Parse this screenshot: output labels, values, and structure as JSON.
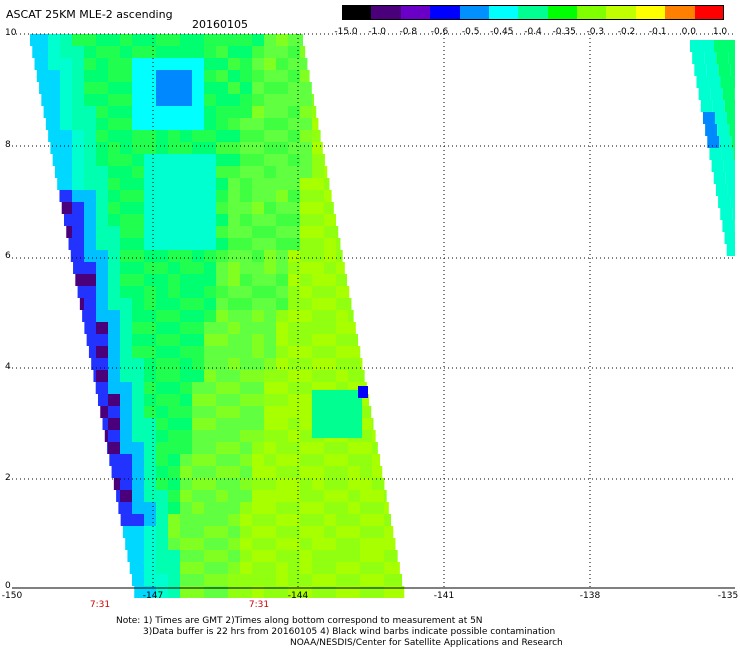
{
  "header": {
    "title": "ASCAT 25KM MLE-2 ascending",
    "date": "20160105"
  },
  "colorbar": {
    "labels": [
      "-15.0",
      "-1.0",
      "-0.8",
      "-0.6",
      "-0.5",
      "-0.45",
      "-0.4",
      "-0.35",
      "-0.3",
      "-0.2",
      "-0.1",
      "0.0",
      "1.0"
    ],
    "colors": [
      "#000000",
      "#4a007a",
      "#6a00c8",
      "#0000ff",
      "#0090ff",
      "#00ffff",
      "#00ff90",
      "#00ff00",
      "#80ff00",
      "#c0ff00",
      "#ffff00",
      "#ff8000",
      "#ff0000"
    ]
  },
  "axes": {
    "y_labels": [
      "10",
      "8",
      "6",
      "4",
      "2",
      "0"
    ],
    "x_labels": [
      "-150",
      "-147",
      "-144",
      "-141",
      "-138",
      "-135"
    ],
    "time_labels": [
      "7:31",
      "7:31"
    ]
  },
  "notes": {
    "line1": "Note: 1) Times are GMT 2)Times along bottom correspond to measurement at 5N",
    "line2": "3)Data buffer is 22 hrs from 20160105 4) Black wind barbs indicate possible contamination",
    "line3": "NOAA/NESDIS/Center for Satellite Applications and Research"
  }
}
